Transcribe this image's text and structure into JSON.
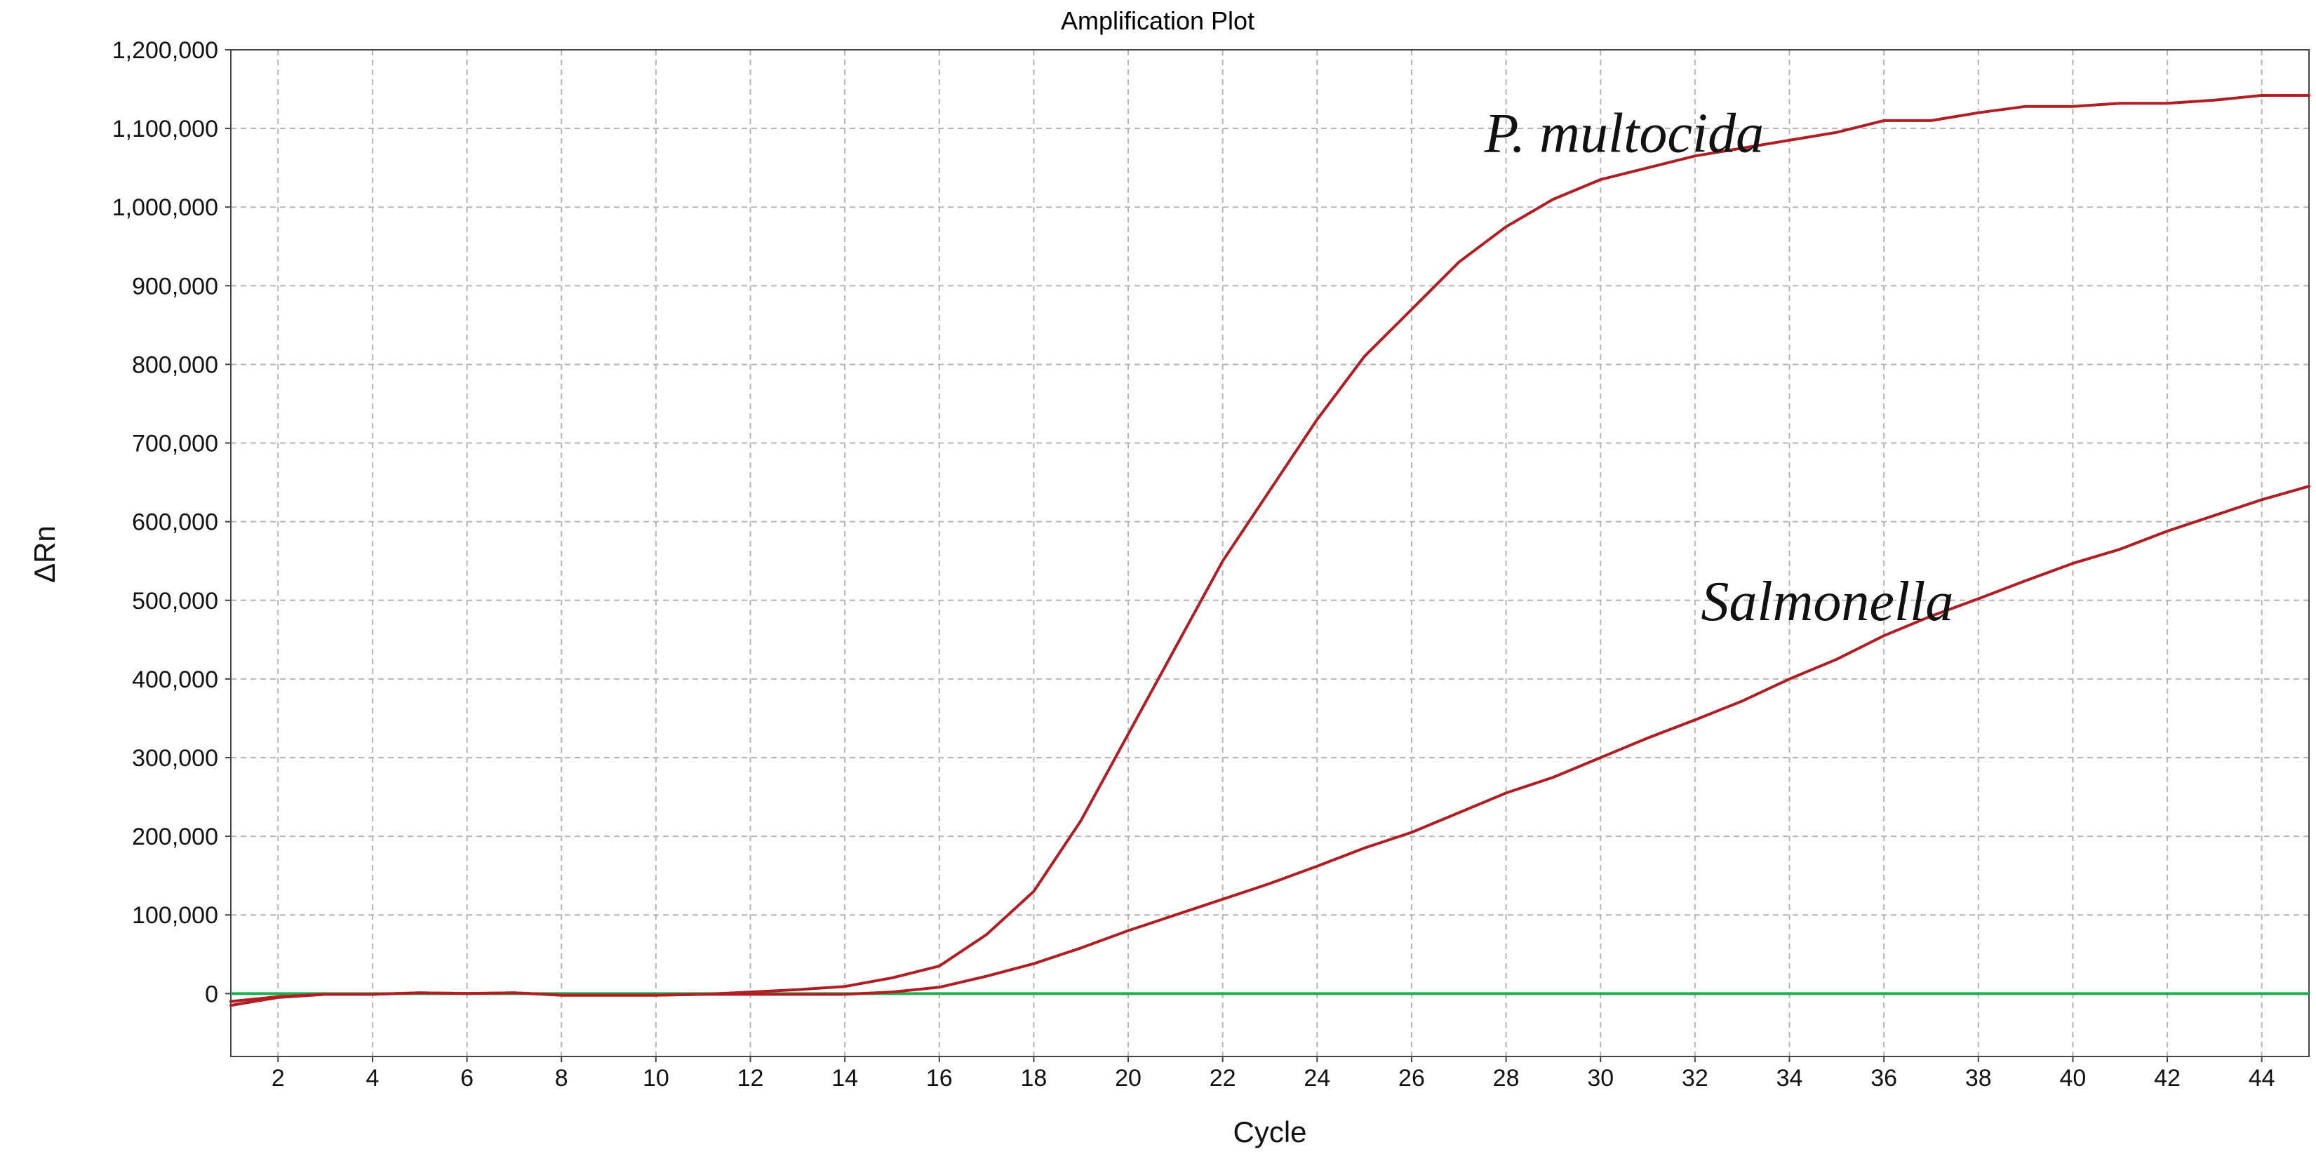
{
  "chart_data": {
    "type": "line",
    "title": "Amplification Plot",
    "xlabel": "Cycle",
    "ylabel": "ΔRn",
    "xlim": [
      1,
      45
    ],
    "ylim": [
      -80000,
      1200000
    ],
    "x_ticks": [
      2,
      4,
      6,
      8,
      10,
      12,
      14,
      16,
      18,
      20,
      22,
      24,
      26,
      28,
      30,
      32,
      34,
      36,
      38,
      40,
      42,
      44
    ],
    "y_ticks": [
      0,
      100000,
      200000,
      300000,
      400000,
      500000,
      600000,
      700000,
      800000,
      900000,
      1000000,
      1100000,
      1200000
    ],
    "y_tick_labels": [
      "0",
      "100,000",
      "200,000",
      "300,000",
      "400,000",
      "500,000",
      "600,000",
      "700,000",
      "800,000",
      "900,000",
      "1,000,000",
      "1,100,000",
      "1,200,000"
    ],
    "grid": true,
    "colors": {
      "curve": "#b01e23",
      "threshold": "#1fae4f",
      "grid": "#b5b5b5"
    },
    "series": [
      {
        "name": "P. multocida",
        "x": [
          1,
          2,
          3,
          4,
          5,
          6,
          7,
          8,
          9,
          10,
          11,
          12,
          13,
          14,
          15,
          16,
          17,
          18,
          19,
          20,
          21,
          22,
          23,
          24,
          25,
          26,
          27,
          28,
          29,
          30,
          31,
          32,
          33,
          34,
          35,
          36,
          37,
          38,
          39,
          40,
          41,
          42,
          43,
          44,
          45
        ],
        "values": [
          -15000,
          -5000,
          -1000,
          -1000,
          1000,
          0,
          1000,
          -2000,
          -2000,
          -2000,
          -1000,
          2000,
          5000,
          9000,
          20000,
          35000,
          75000,
          130000,
          220000,
          330000,
          440000,
          550000,
          640000,
          730000,
          810000,
          870000,
          930000,
          975000,
          1010000,
          1035000,
          1050000,
          1065000,
          1075000,
          1085000,
          1095000,
          1110000,
          1110000,
          1120000,
          1128000,
          1128000,
          1132000,
          1132000,
          1136000,
          1142000,
          1142000
        ]
      },
      {
        "name": "Salmonella",
        "x": [
          1,
          2,
          3,
          4,
          5,
          6,
          7,
          8,
          9,
          10,
          11,
          12,
          13,
          14,
          15,
          16,
          17,
          18,
          19,
          20,
          21,
          22,
          23,
          24,
          25,
          26,
          27,
          28,
          29,
          30,
          31,
          32,
          33,
          34,
          35,
          36,
          37,
          38,
          39,
          40,
          41,
          42,
          43,
          44,
          45
        ],
        "values": [
          -10000,
          -4000,
          -1000,
          -1000,
          1000,
          0,
          1000,
          -2000,
          -2000,
          -2000,
          -1000,
          -1000,
          -1000,
          -1000,
          2000,
          8000,
          22000,
          38000,
          58000,
          80000,
          100000,
          120000,
          140000,
          162000,
          185000,
          205000,
          230000,
          255000,
          275000,
          300000,
          325000,
          348000,
          372000,
          400000,
          425000,
          455000,
          480000,
          502000,
          525000,
          547000,
          565000,
          588000,
          608000,
          628000,
          645000
        ]
      }
    ],
    "threshold": {
      "y": 0
    },
    "annotations": [
      {
        "text": "P. multocida",
        "x": 30.5,
        "y": 1070000
      },
      {
        "text": "Salmonella",
        "x": 34.8,
        "y": 475000
      }
    ]
  }
}
